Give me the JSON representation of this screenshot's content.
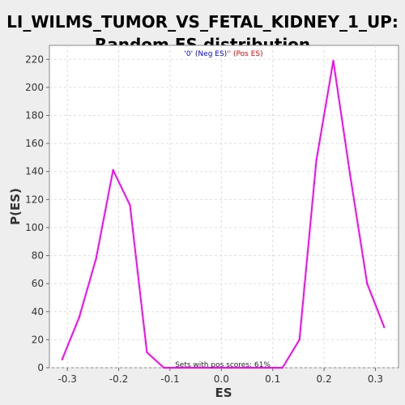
{
  "chart_data": {
    "type": "line",
    "title_lines": [
      "LI_WILMS_TUMOR_VS_FETAL_KIDNEY_1_UP:",
      "Random ES distribution"
    ],
    "xlabel": "ES",
    "ylabel": "P(ES)",
    "xlim": [
      -0.335,
      0.345
    ],
    "ylim": [
      0,
      230
    ],
    "x_ticks": [
      -0.3,
      -0.2,
      -0.1,
      0.0,
      0.1,
      0.2,
      0.3
    ],
    "x_tick_labels": [
      "-0.3",
      "-0.2",
      "-0.1",
      "0.0",
      "0.1",
      "0.2",
      "0.3"
    ],
    "y_ticks": [
      0,
      20,
      40,
      60,
      80,
      100,
      120,
      140,
      160,
      180,
      200,
      220
    ],
    "y_tick_labels": [
      "0",
      "20",
      "40",
      "60",
      "80",
      "100",
      "120",
      "140",
      "160",
      "180",
      "200",
      "220"
    ],
    "grid": true,
    "legend": {
      "placement": "top-center",
      "neg_text": "'0' (Neg ES)",
      "pos_text": "'' (Pos ES)",
      "neg_color": "#0000ff",
      "pos_color": "#ff0000"
    },
    "annotation": "Sets with pos scores: 61%",
    "series": [
      {
        "color": "#ff00ff",
        "x": [
          -0.31,
          -0.277,
          -0.244,
          -0.211,
          -0.178,
          -0.145,
          -0.112,
          -0.079,
          -0.046,
          -0.013,
          0.02,
          0.053,
          0.086,
          0.119,
          0.152,
          0.185,
          0.218,
          0.251,
          0.284,
          0.317
        ],
        "y": [
          6,
          36,
          78,
          141,
          116,
          11,
          0,
          0,
          0,
          0,
          0,
          0,
          0,
          0,
          20,
          148,
          219,
          137,
          60,
          29
        ]
      }
    ]
  }
}
